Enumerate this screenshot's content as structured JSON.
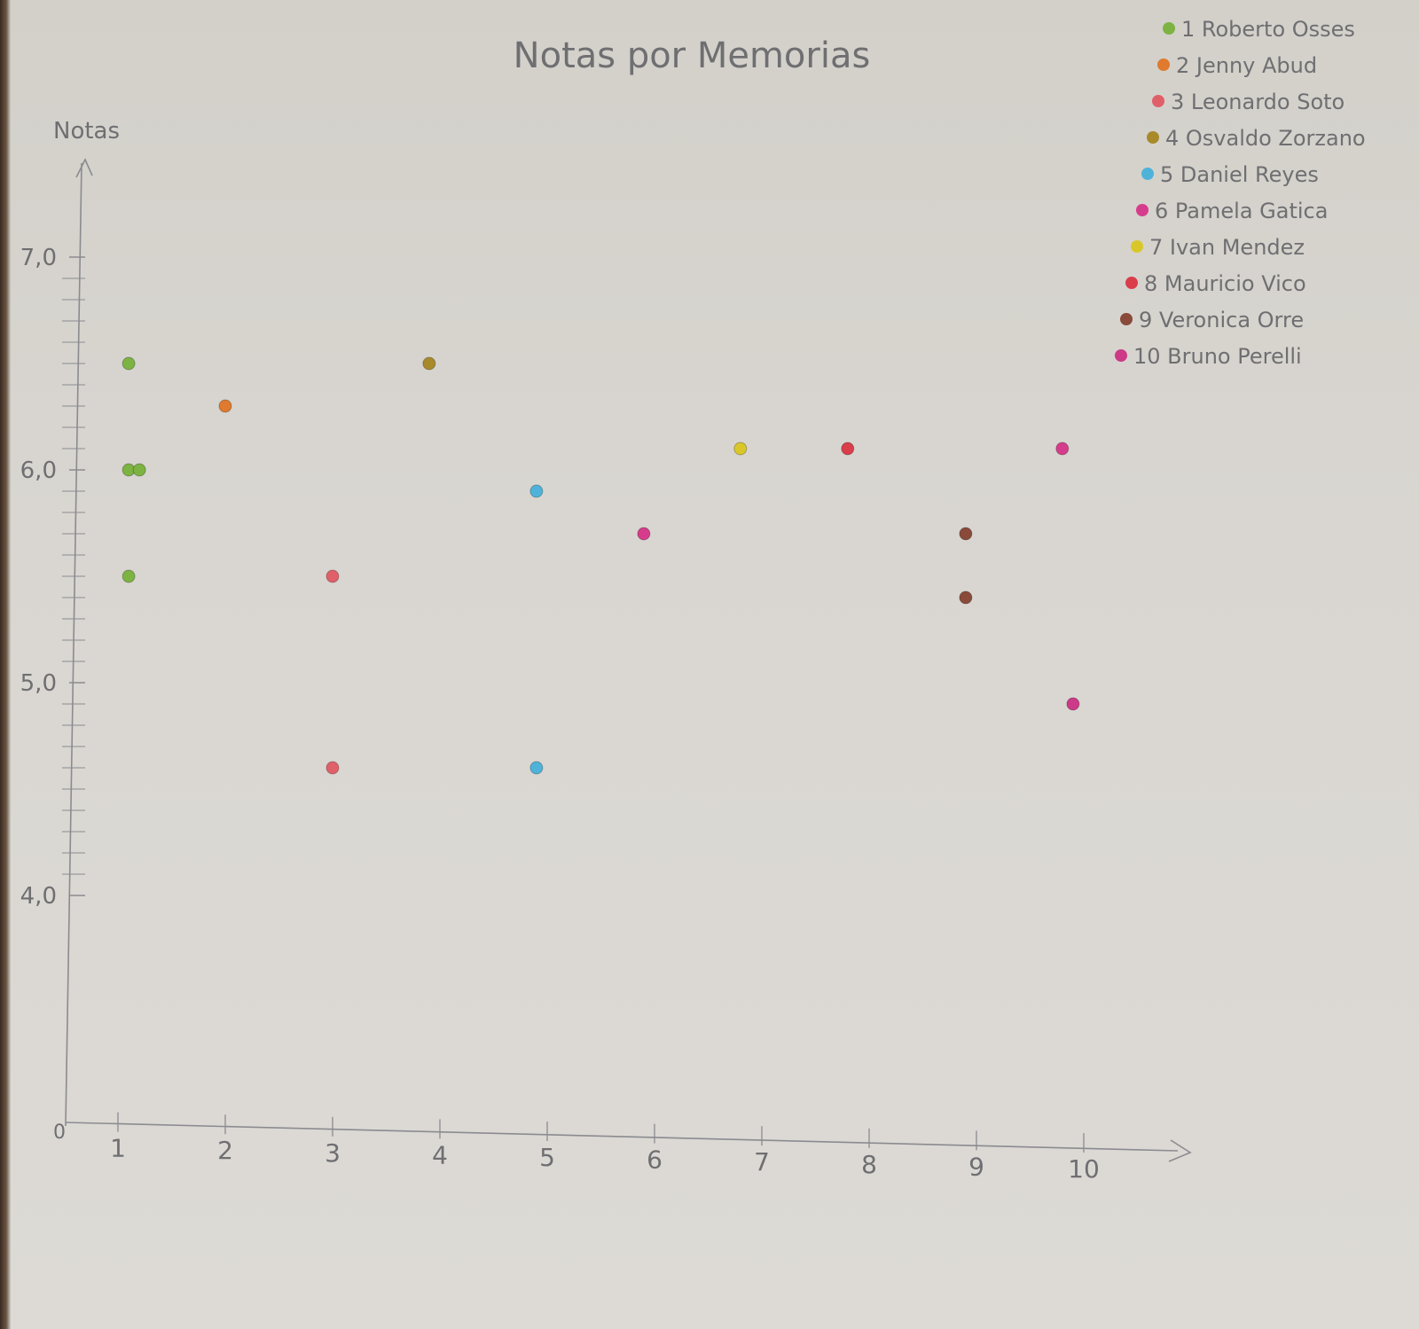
{
  "chart_data": {
    "type": "scatter",
    "title": "Notas por Memorias",
    "xlabel": "",
    "ylabel": "Notas",
    "origin_label": "0",
    "xlim": [
      0,
      10.5
    ],
    "ylim": [
      3.0,
      7.5
    ],
    "x_ticks": [
      {
        "value": 1,
        "label": "1"
      },
      {
        "value": 2,
        "label": "2"
      },
      {
        "value": 3,
        "label": "3"
      },
      {
        "value": 4,
        "label": "4"
      },
      {
        "value": 5,
        "label": "5"
      },
      {
        "value": 6,
        "label": "6"
      },
      {
        "value": 7,
        "label": "7"
      },
      {
        "value": 8,
        "label": "8"
      },
      {
        "value": 9,
        "label": "9"
      },
      {
        "value": 10,
        "label": "10"
      }
    ],
    "y_ticks": [
      {
        "value": 4.0,
        "label": "4,0"
      },
      {
        "value": 5.0,
        "label": "5,0"
      },
      {
        "value": 6.0,
        "label": "6,0"
      },
      {
        "value": 7.0,
        "label": "7,0"
      }
    ],
    "grid": false,
    "legend_position": "top-right",
    "series": [
      {
        "name": "1 Roberto Osses",
        "color": "#7cb342",
        "points": [
          {
            "x": 1.1,
            "y": 6.5
          },
          {
            "x": 1.1,
            "y": 6.0
          },
          {
            "x": 1.2,
            "y": 6.0
          },
          {
            "x": 1.1,
            "y": 5.5
          }
        ]
      },
      {
        "name": "2 Jenny Abud",
        "color": "#e07a2e",
        "points": [
          {
            "x": 2.0,
            "y": 6.3
          }
        ]
      },
      {
        "name": "3 Leonardo Soto",
        "color": "#e0606a",
        "points": [
          {
            "x": 3.0,
            "y": 5.5
          },
          {
            "x": 3.0,
            "y": 4.6
          }
        ]
      },
      {
        "name": "4 Osvaldo Zorzano",
        "color": "#a88a2a",
        "points": [
          {
            "x": 3.9,
            "y": 6.5
          }
        ]
      },
      {
        "name": "5 Daniel Reyes",
        "color": "#4fb3d9",
        "points": [
          {
            "x": 4.9,
            "y": 5.9
          },
          {
            "x": 4.9,
            "y": 4.6
          }
        ]
      },
      {
        "name": "6 Pamela Gatica",
        "color": "#d63c8c",
        "points": [
          {
            "x": 5.9,
            "y": 5.7
          },
          {
            "x": 9.8,
            "y": 6.1
          }
        ]
      },
      {
        "name": "7 Ivan Mendez",
        "color": "#d9c72a",
        "points": [
          {
            "x": 6.8,
            "y": 6.1
          }
        ]
      },
      {
        "name": "8 Mauricio Vico",
        "color": "#d93e4a",
        "points": [
          {
            "x": 7.8,
            "y": 6.1
          }
        ]
      },
      {
        "name": "9 Veronica Orre",
        "color": "#8a4a3a",
        "points": [
          {
            "x": 8.9,
            "y": 5.7
          },
          {
            "x": 8.9,
            "y": 5.4
          }
        ]
      },
      {
        "name": "10 Bruno Perelli",
        "color": "#cc3a88",
        "points": [
          {
            "x": 9.9,
            "y": 4.9
          }
        ]
      }
    ]
  }
}
